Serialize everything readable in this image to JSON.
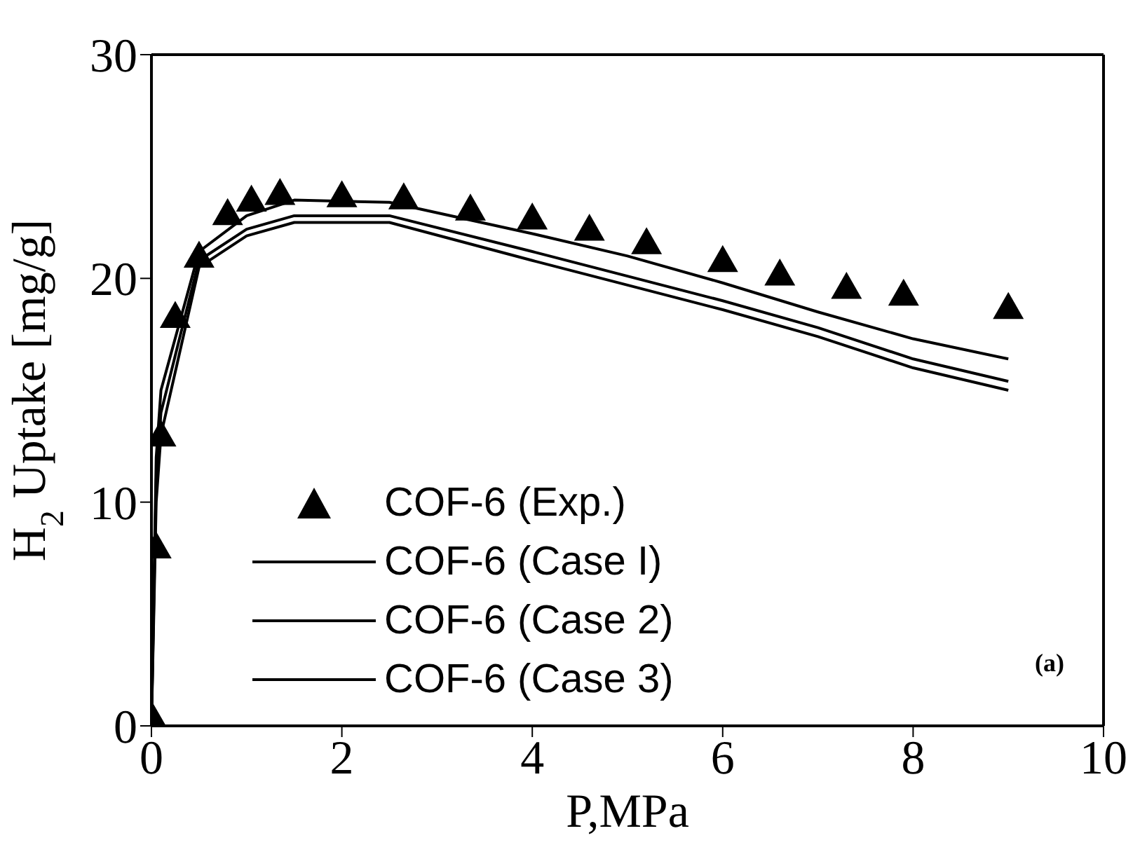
{
  "chart_data": {
    "type": "line",
    "xlabel": "P,MPa",
    "ylabel": "H$_{2}$ Uptake [mg/g]",
    "xlim": [
      0,
      10
    ],
    "ylim": [
      0,
      30
    ],
    "xticks": [
      0,
      2,
      4,
      6,
      8,
      10
    ],
    "yticks": [
      0,
      10,
      20,
      30
    ],
    "grid": false,
    "legend": "bottom left",
    "annotations": [
      "(a)"
    ],
    "series": [
      {
        "name": "COF-6 (Exp.)",
        "type": "scatter",
        "marker": "triangle",
        "color": "#000000",
        "x": [
          0.02,
          0.05,
          0.1,
          0.25,
          0.5,
          0.8,
          1.05,
          1.35,
          2,
          2.65,
          3.35,
          4,
          4.6,
          5.2,
          6,
          6.6,
          7.3,
          7.9,
          9
        ],
        "values": [
          0.3,
          8,
          13,
          18.3,
          21,
          22.9,
          23.5,
          23.8,
          23.7,
          23.6,
          23.1,
          22.7,
          22.2,
          21.6,
          20.8,
          20.2,
          19.6,
          19.3,
          18.7
        ]
      },
      {
        "name": "COF-6 (Case I)",
        "marker": "none",
        "color": "#000000",
        "x": [
          0,
          0.05,
          0.1,
          0.5,
          1,
          1.5,
          2.5,
          4,
          5,
          6,
          7,
          8,
          9
        ],
        "values": [
          0,
          12,
          15,
          21.2,
          22.8,
          23.5,
          23.4,
          22,
          21,
          19.8,
          18.5,
          17.3,
          16.4
        ]
      },
      {
        "name": "COF-6 (Case 2)",
        "marker": "none",
        "color": "#000000",
        "x": [
          0,
          0.05,
          0.1,
          0.5,
          1,
          1.5,
          2.5,
          4,
          5,
          6,
          7,
          8,
          9
        ],
        "values": [
          0,
          11,
          14,
          20.8,
          22.2,
          22.8,
          22.8,
          21.2,
          20.1,
          19,
          17.8,
          16.4,
          15.4
        ]
      },
      {
        "name": "COF-6 (Case 3)",
        "marker": "none",
        "color": "#000000",
        "x": [
          0,
          0.05,
          0.1,
          0.5,
          1,
          1.5,
          2.5,
          4,
          5,
          6,
          7,
          8,
          9
        ],
        "values": [
          0,
          10,
          13,
          20.5,
          21.9,
          22.5,
          22.5,
          20.8,
          19.7,
          18.6,
          17.4,
          16,
          15
        ]
      }
    ]
  }
}
